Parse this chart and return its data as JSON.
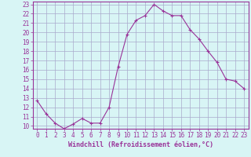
{
  "xlabel": "Windchill (Refroidissement éolien,°C)",
  "x": [
    0,
    1,
    2,
    3,
    4,
    5,
    6,
    7,
    8,
    9,
    10,
    11,
    12,
    13,
    14,
    15,
    16,
    17,
    18,
    19,
    20,
    21,
    22,
    23
  ],
  "y": [
    12.7,
    11.3,
    10.3,
    9.7,
    10.2,
    10.8,
    10.3,
    10.3,
    12.0,
    16.3,
    19.8,
    21.3,
    21.8,
    23.0,
    22.3,
    21.8,
    21.8,
    20.3,
    19.3,
    18.0,
    16.8,
    15.0,
    14.8,
    14.0
  ],
  "line_color": "#993399",
  "marker": "+",
  "marker_size": 3,
  "bg_color": "#d8f5f5",
  "grid_color": "#aaaacc",
  "ylim": [
    10,
    23
  ],
  "xlim": [
    0,
    23
  ],
  "yticks": [
    10,
    11,
    12,
    13,
    14,
    15,
    16,
    17,
    18,
    19,
    20,
    21,
    22,
    23
  ],
  "xticks": [
    0,
    1,
    2,
    3,
    4,
    5,
    6,
    7,
    8,
    9,
    10,
    11,
    12,
    13,
    14,
    15,
    16,
    17,
    18,
    19,
    20,
    21,
    22,
    23
  ],
  "tick_color": "#993399",
  "label_color": "#993399",
  "tick_fontsize": 5.5,
  "xlabel_fontsize": 6.0,
  "linewidth": 0.8
}
